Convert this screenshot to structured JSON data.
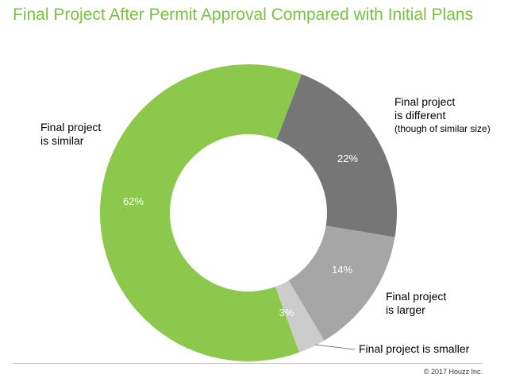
{
  "chart_data": {
    "type": "pie",
    "variant": "donut",
    "title": "Final Project After Permit Approval Compared with Initial Plans",
    "slices": [
      {
        "key": "different",
        "label_line1": "Final project",
        "label_line2": "is different",
        "label_line3": "(though of similar size)",
        "value": 22,
        "value_label": "22%",
        "color": "#767676"
      },
      {
        "key": "larger",
        "label_line1": "Final project",
        "label_line2": "is larger",
        "value": 14,
        "value_label": "14%",
        "color": "#a6a6a6"
      },
      {
        "key": "smaller",
        "label_line1": "Final project is smaller",
        "value": 3,
        "value_label": "3%",
        "color": "#cccccc"
      },
      {
        "key": "similar",
        "label_line1": "Final project",
        "label_line2": "is similar",
        "value": 62,
        "value_label": "62%",
        "color": "#8cc84b"
      }
    ],
    "start_angle_deg": 21,
    "direction": "clockwise",
    "legend": "none (direct labels)"
  },
  "footer": {
    "copyright": "© 2017 Houzz Inc."
  }
}
